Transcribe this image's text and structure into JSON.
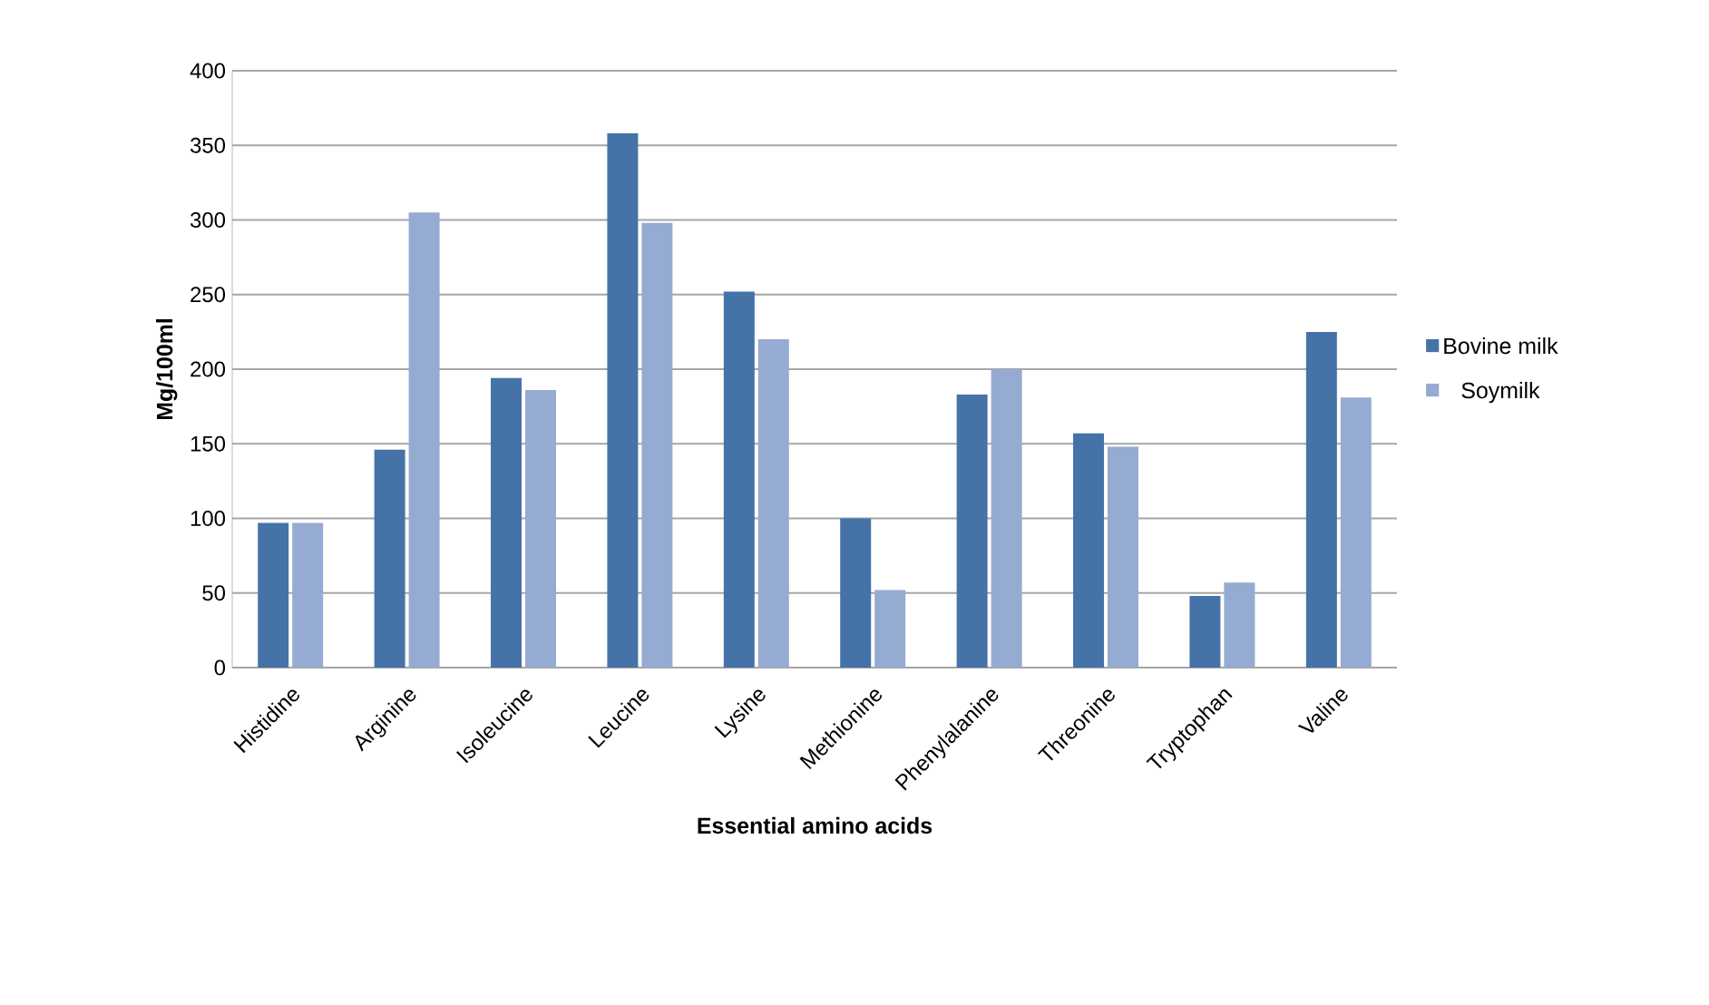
{
  "chart_data": {
    "type": "bar",
    "xlabel": "Essential amino acids",
    "ylabel": "Mg/100ml",
    "categories": [
      "Histidine",
      "Arginine",
      "Isoleucine",
      "Leucine",
      "Lysine",
      "Methionine",
      "Phenylalanine",
      "Threonine",
      "Tryptophan",
      "Valine"
    ],
    "series": [
      {
        "name": "Bovine milk",
        "color": "#4573a7",
        "values": [
          97,
          146,
          194,
          358,
          252,
          100,
          183,
          157,
          48,
          225
        ]
      },
      {
        "name": "Soymilk",
        "color": "#96abd1",
        "values": [
          97,
          305,
          186,
          298,
          220,
          52,
          200,
          148,
          57,
          181
        ]
      }
    ],
    "ylim": [
      0,
      400
    ],
    "yticks": [
      0,
      50,
      100,
      150,
      200,
      250,
      300,
      350,
      400
    ],
    "grid": "y",
    "legend": "right"
  }
}
